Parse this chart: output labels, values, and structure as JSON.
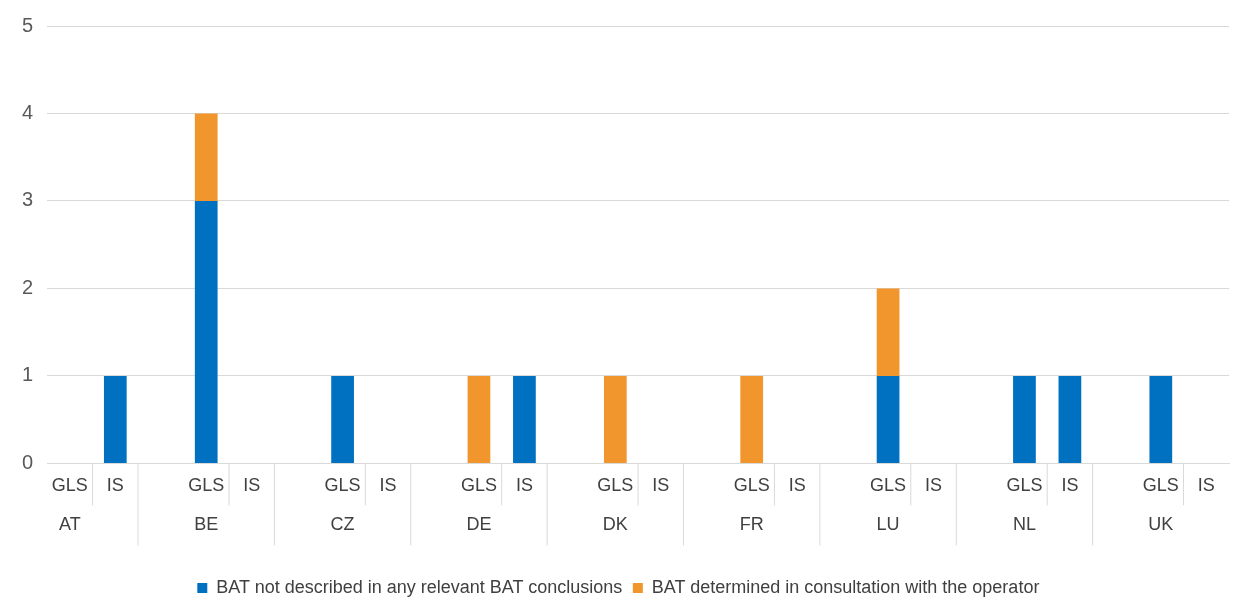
{
  "chart_data": {
    "type": "bar",
    "stacked": true,
    "categories": [
      "GLS",
      "IS",
      null,
      "GLS",
      "IS",
      null,
      "GLS",
      "IS",
      null,
      "GLS",
      "IS",
      null,
      "GLS",
      "IS",
      null,
      "GLS",
      "IS",
      null,
      "GLS",
      "IS",
      null,
      "GLS",
      "IS",
      null,
      "GLS",
      "IS"
    ],
    "series": [
      {
        "name": "BAT not described in any relevant BAT conclusions",
        "color": "#0070c0",
        "values": [
          null,
          1,
          null,
          3,
          null,
          null,
          1,
          null,
          null,
          null,
          1,
          null,
          null,
          null,
          null,
          null,
          null,
          null,
          1,
          null,
          null,
          1,
          1,
          null,
          1,
          null
        ]
      },
      {
        "name": "BAT determined in consultation with the operator",
        "color": "#f0962d",
        "values": [
          null,
          null,
          null,
          1,
          null,
          null,
          null,
          null,
          null,
          1,
          null,
          null,
          1,
          null,
          null,
          1,
          null,
          null,
          1,
          null,
          null,
          null,
          null,
          null,
          null,
          null
        ]
      }
    ],
    "annotations": [
      "AT",
      "BE",
      "CZ",
      "DE",
      "DK",
      "FR",
      "LU",
      "NL",
      "UK"
    ],
    "ylim": [
      0,
      5
    ],
    "yticks": [
      0,
      1,
      2,
      3,
      4,
      5
    ],
    "grid": "y",
    "legend": "bottom"
  }
}
